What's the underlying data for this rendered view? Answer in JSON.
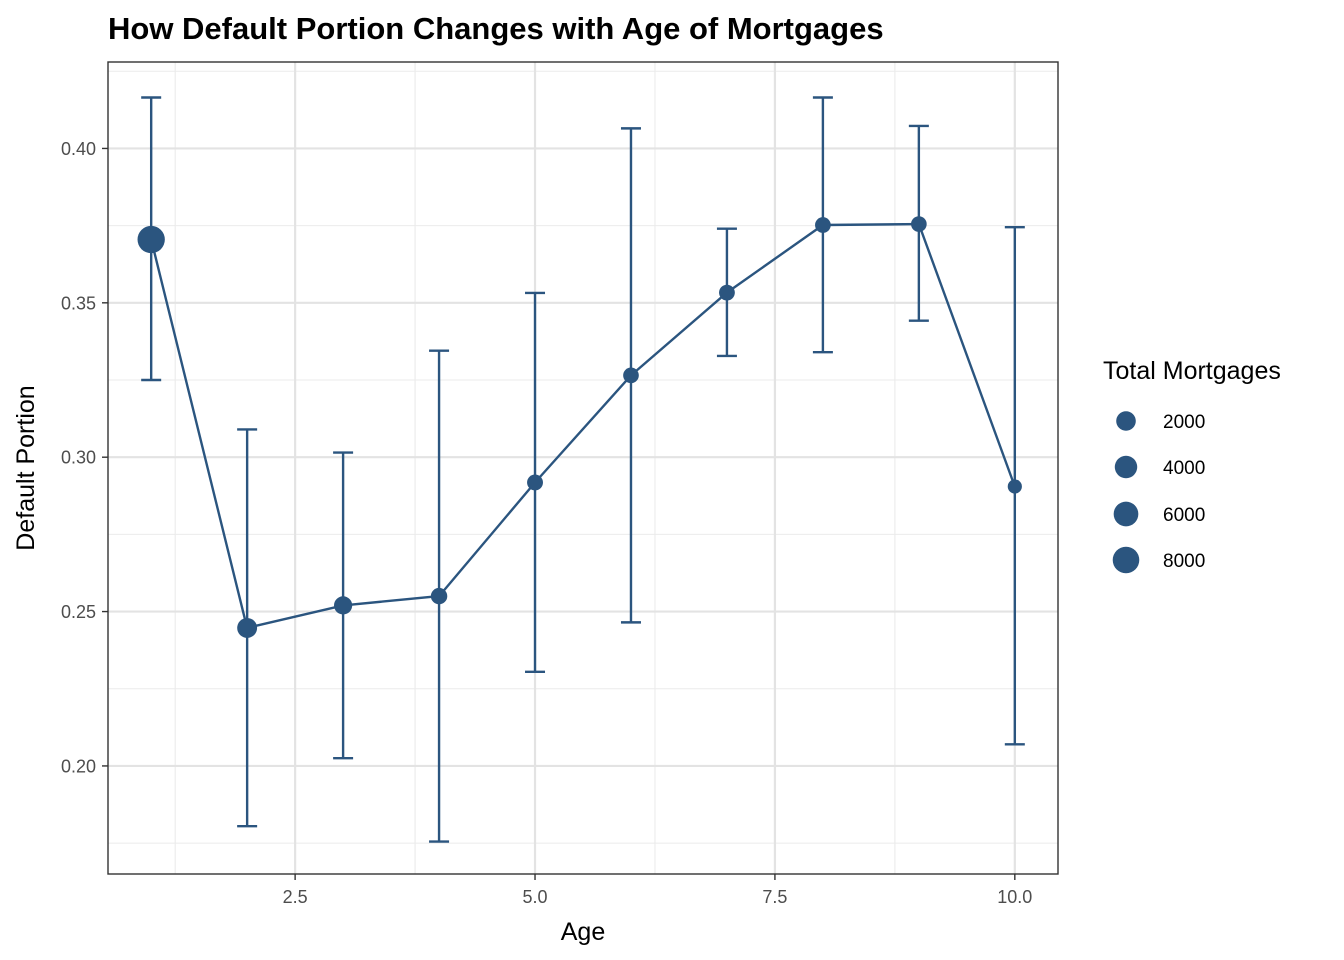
{
  "chart_data": {
    "type": "line",
    "title": "How Default Portion Changes with Age of Mortgages",
    "xlabel": "Age",
    "ylabel": "Default Portion",
    "xlim": [
      0.55,
      10.45
    ],
    "ylim": [
      0.165,
      0.428
    ],
    "x_ticks": [
      2.5,
      5.0,
      7.5,
      10.0
    ],
    "x_tick_labels": [
      "2.5",
      "5.0",
      "7.5",
      "10.0"
    ],
    "y_ticks": [
      0.2,
      0.25,
      0.3,
      0.35,
      0.4
    ],
    "y_tick_labels": [
      "0.20",
      "0.25",
      "0.30",
      "0.35",
      "0.40"
    ],
    "grid": true,
    "color": "#2b557f",
    "legend": {
      "title": "Total Mortgages",
      "position": "right",
      "entries": [
        {
          "label": "2000",
          "value": 2000
        },
        {
          "label": "4000",
          "value": 4000
        },
        {
          "label": "6000",
          "value": 6000
        },
        {
          "label": "8000",
          "value": 8000
        }
      ]
    },
    "points": [
      {
        "x": 1,
        "y": 0.3705,
        "ymin": 0.325,
        "ymax": 0.4165,
        "total": 8900
      },
      {
        "x": 2,
        "y": 0.2447,
        "ymin": 0.1805,
        "ymax": 0.309,
        "total": 2200
      },
      {
        "x": 3,
        "y": 0.252,
        "ymin": 0.2025,
        "ymax": 0.3015,
        "total": 1300
      },
      {
        "x": 4,
        "y": 0.255,
        "ymin": 0.1755,
        "ymax": 0.3345,
        "total": 600
      },
      {
        "x": 5,
        "y": 0.2918,
        "ymin": 0.2305,
        "ymax": 0.3532,
        "total": 450
      },
      {
        "x": 6,
        "y": 0.3265,
        "ymin": 0.2465,
        "ymax": 0.4065,
        "total": 380
      },
      {
        "x": 7,
        "y": 0.3533,
        "ymin": 0.3328,
        "ymax": 0.374,
        "total": 420
      },
      {
        "x": 8,
        "y": 0.3752,
        "ymin": 0.334,
        "ymax": 0.4165,
        "total": 400
      },
      {
        "x": 9,
        "y": 0.3755,
        "ymin": 0.3442,
        "ymax": 0.4073,
        "total": 380
      },
      {
        "x": 10,
        "y": 0.2905,
        "ymin": 0.207,
        "ymax": 0.3745,
        "total": 100
      }
    ]
  }
}
